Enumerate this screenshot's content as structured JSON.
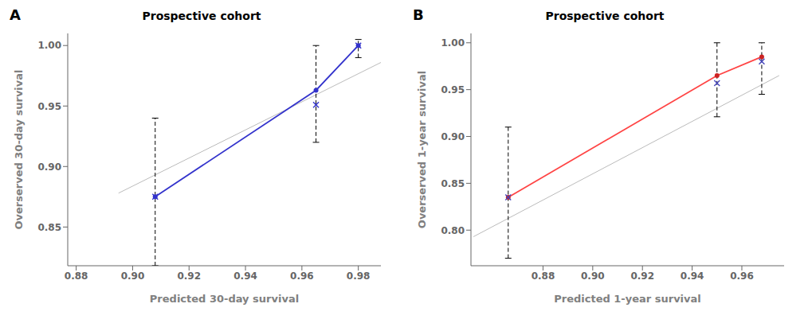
{
  "chart_data": [
    {
      "type": "line",
      "title": "Prospective cohort",
      "xlabel": "Predicted 30-day survival",
      "ylabel": "Overserved 30-day survival",
      "annotations": [
        "A"
      ],
      "grid": false,
      "xlim": [
        0.877,
        0.988
      ],
      "ylim": [
        0.818,
        1.01
      ],
      "xticks": [
        0.88,
        {
          "value": 0.9,
          "label": "0.90"
        },
        0.92,
        0.94,
        0.96,
        0.98
      ],
      "yticks": [
        0.85,
        {
          "value": 0.9,
          "label": "0.90"
        },
        0.95,
        {
          "value": 1,
          "label": "1.00"
        }
      ],
      "series": [
        {
          "type": "line",
          "color": "#BBBBBB",
          "line_style": "solid",
          "marker": "none",
          "x": [
            0.895,
            0.988
          ],
          "values": [
            0.878,
            0.986
          ]
        },
        {
          "type": "line",
          "color": "#3333CC",
          "line_style": "solid",
          "marker": "none",
          "x": [
            0.908,
            0.965,
            0.98
          ],
          "values": [
            0.875,
            0.963,
            1.0
          ]
        },
        {
          "type": "scatter",
          "color": "#3333CC",
          "marker": "o",
          "x": [
            0.908,
            0.965,
            0.98
          ],
          "values": [
            0.875,
            0.963,
            1.0
          ]
        },
        {
          "type": "scatter",
          "color": "#3333CC",
          "marker": "x",
          "x": [
            0.908,
            0.965,
            0.98
          ],
          "values": [
            0.875,
            0.951,
            1.0
          ]
        },
        {
          "type": "errorbar",
          "color": "#000000",
          "line_style": "dashed",
          "x": [
            0.908,
            0.965,
            0.98
          ],
          "low": [
            0.818,
            0.92,
            0.99
          ],
          "high": [
            0.94,
            1.0,
            1.005
          ]
        }
      ]
    },
    {
      "type": "line",
      "title": "Prospective cohort",
      "xlabel": "Predicted 1-year survival",
      "ylabel": "Overserved 1-year survival",
      "annotations": [
        "B"
      ],
      "grid": false,
      "xlim": [
        0.851,
        0.977
      ],
      "ylim": [
        0.762,
        1.01
      ],
      "xticks": [
        0.88,
        {
          "value": 0.9,
          "label": "0.90"
        },
        0.92,
        0.94,
        0.96
      ],
      "yticks": [
        {
          "value": 0.8,
          "label": "0.80"
        },
        0.85,
        {
          "value": 0.9,
          "label": "0.90"
        },
        0.95,
        {
          "value": 1,
          "label": "1.00"
        }
      ],
      "series": [
        {
          "type": "line",
          "color": "#BBBBBB",
          "line_style": "solid",
          "marker": "none",
          "x": [
            0.852,
            0.975
          ],
          "values": [
            0.793,
            0.965
          ]
        },
        {
          "type": "line",
          "color": "#FF4444",
          "line_style": "solid",
          "marker": "none",
          "x": [
            0.866,
            0.95,
            0.968
          ],
          "values": [
            0.835,
            0.965,
            0.985
          ]
        },
        {
          "type": "scatter",
          "color": "#CC2222",
          "marker": "o",
          "x": [
            0.866,
            0.95,
            0.968
          ],
          "values": [
            0.835,
            0.965,
            0.985
          ]
        },
        {
          "type": "scatter",
          "color": "#4444BB",
          "marker": "x",
          "x": [
            0.866,
            0.95,
            0.968
          ],
          "values": [
            0.835,
            0.957,
            0.98
          ]
        },
        {
          "type": "errorbar",
          "color": "#000000",
          "line_style": "dashed",
          "x": [
            0.866,
            0.95,
            0.968
          ],
          "low": [
            0.77,
            0.921,
            0.945
          ],
          "high": [
            0.91,
            1.0,
            1.0
          ]
        }
      ]
    }
  ]
}
